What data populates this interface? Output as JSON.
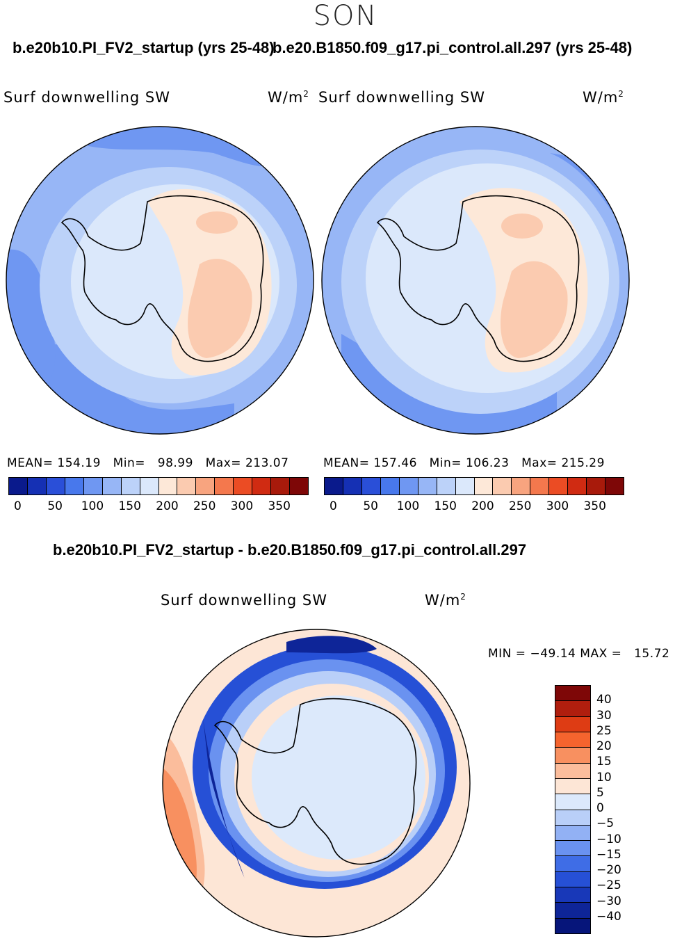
{
  "season": "SON",
  "top_titles": {
    "left": "b.e20b10.PI_FV2_startup (yrs 25-48)",
    "right": "b.e20.B1850.f09_g17.pi_control.all.297 (yrs 25-48)"
  },
  "diff_title": "b.e20b10.PI_FV2_startup - b.e20.B1850.f09_g17.pi_control.all.297",
  "chart_data": [
    {
      "type": "heatmap",
      "projection": "south-polar-stereographic",
      "variable": "Surf downwelling SW",
      "units": "W/m",
      "units_exp": "2",
      "stats": {
        "mean_label": "MEAN=",
        "mean": "154.19",
        "min_label": "Min=",
        "min": "98.99",
        "max_label": "Max=",
        "max": "213.07"
      },
      "levels": [
        "0",
        "50",
        "100",
        "150",
        "200",
        "250",
        "300",
        "350"
      ],
      "colors": [
        "#0a1a8c",
        "#1530b4",
        "#2a4fd8",
        "#4878ec",
        "#6f97f2",
        "#97b6f6",
        "#bcd2f9",
        "#dbe8fb",
        "#fde8d8",
        "#fbcbb0",
        "#f8a47f",
        "#f4784d",
        "#eb4c24",
        "#d02b12",
        "#a81a0b",
        "#7e0707"
      ]
    },
    {
      "type": "heatmap",
      "projection": "south-polar-stereographic",
      "variable": "Surf downwelling SW",
      "units": "W/m",
      "units_exp": "2",
      "stats": {
        "mean_label": "MEAN=",
        "mean": "157.46",
        "min_label": "Min=",
        "min": "106.23",
        "max_label": "Max=",
        "max": "215.29"
      },
      "levels": [
        "0",
        "50",
        "100",
        "150",
        "200",
        "250",
        "300",
        "350"
      ],
      "colors": [
        "#0a1a8c",
        "#1530b4",
        "#2a4fd8",
        "#4878ec",
        "#6f97f2",
        "#97b6f6",
        "#bcd2f9",
        "#dbe8fb",
        "#fde8d8",
        "#fbcbb0",
        "#f8a47f",
        "#f4784d",
        "#eb4c24",
        "#d02b12",
        "#a81a0b",
        "#7e0707"
      ]
    },
    {
      "type": "heatmap",
      "projection": "south-polar-stereographic",
      "variable": "Surf downwelling SW",
      "units": "W/m",
      "units_exp": "2",
      "min_label": "MIN =",
      "min": "−49.14",
      "max_label": "MAX =",
      "max": "15.72",
      "levels": [
        "40",
        "30",
        "25",
        "20",
        "15",
        "10",
        "5",
        "0",
        "−5",
        "−10",
        "−15",
        "−20",
        "−25",
        "−30",
        "−40"
      ],
      "colors": [
        "#7e0707",
        "#b01e0e",
        "#de3c14",
        "#f5642e",
        "#f89060",
        "#fbbd9c",
        "#fde6d6",
        "#dce9fb",
        "#b9cff8",
        "#92b1f4",
        "#6a92f0",
        "#3f6de6",
        "#2650d6",
        "#1838b8",
        "#0e2598",
        "#06157a"
      ]
    }
  ]
}
